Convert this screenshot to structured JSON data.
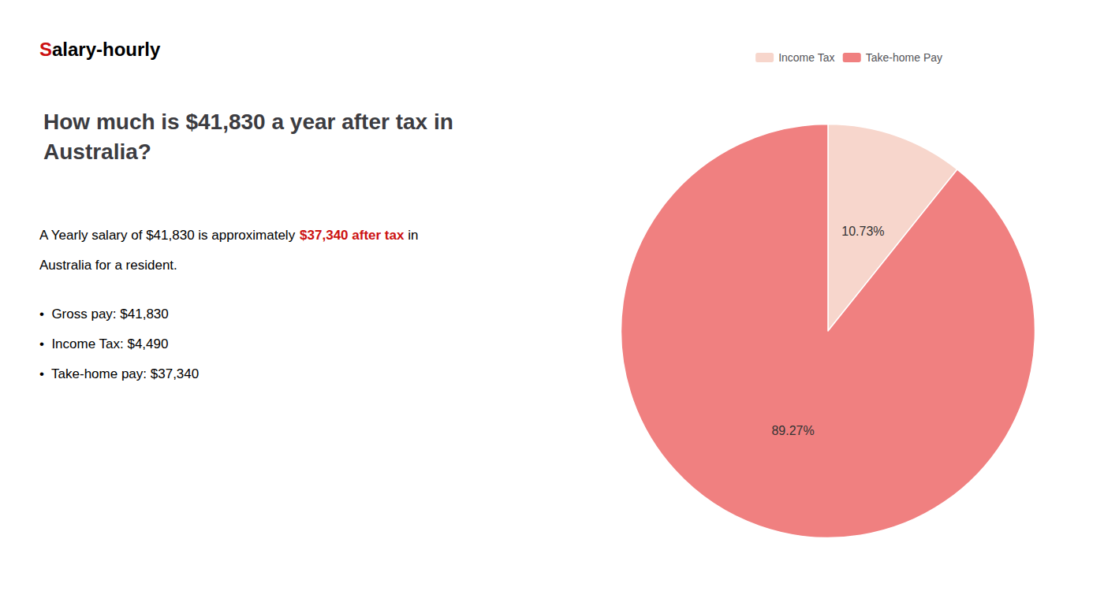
{
  "chart_data": {
    "type": "pie",
    "title": "How much is $41,830 a year after tax in Australia?",
    "annotations": [
      [
        {
          "text": "S",
          "color": "#cc1111"
        },
        {
          "text": "alary-hourly"
        }
      ],
      [
        {
          "text": "A Yearly salary of $41,830 is approximately "
        },
        {
          "text": "$37,340 after tax",
          "color": "#cc1111"
        },
        {
          "text": " in"
        }
      ],
      [
        {
          "text": "Australia for a resident."
        }
      ],
      [
        {
          "text": "•  Gross pay: $41,830"
        }
      ],
      [
        {
          "text": "•  Income Tax: $4,490"
        }
      ],
      [
        {
          "text": "•  Take-home pay: $37,340"
        }
      ]
    ],
    "categories": [
      "Income Tax",
      "Take-home Pay"
    ],
    "values": [
      10.73,
      89.27
    ],
    "value_labels": [
      "10.73%",
      "89.27%"
    ],
    "colors": [
      "#f7d6cc",
      "#f08080"
    ],
    "data_labels": true,
    "legend": "top"
  }
}
